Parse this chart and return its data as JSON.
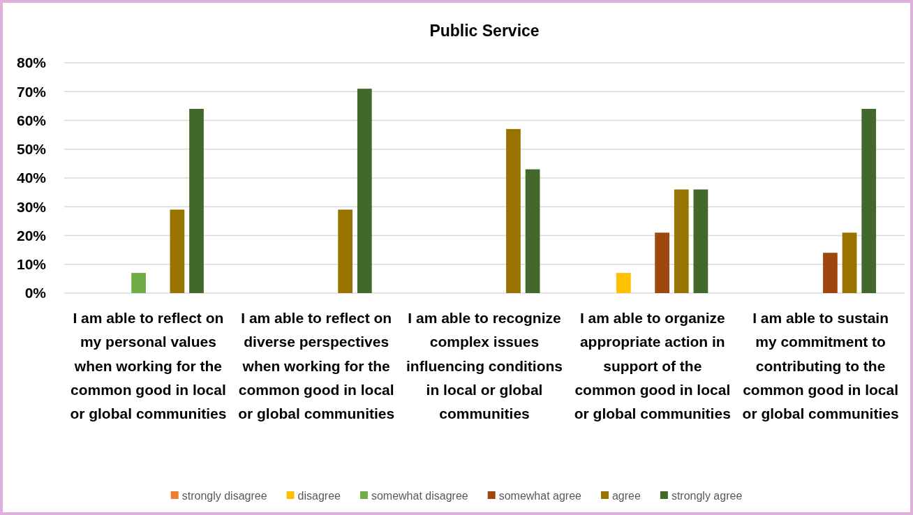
{
  "chart_data": {
    "type": "bar",
    "title": "Public Service",
    "categories": [
      "I am able to reflect on my personal values when working for the common good in local or global communities",
      "I am able to reflect on diverse perspectives when working for the common good in local or global communities",
      "I am able to recognize complex issues influencing conditions in local or global communities",
      "I am able to organize appropriate action in support of the common good in local or global communities",
      "I am able to sustain my commitment to contributing to the common good in local or global communities"
    ],
    "series": [
      {
        "name": "strongly disagree",
        "color": "#ed7d31",
        "values": [
          0,
          0,
          0,
          0,
          0
        ]
      },
      {
        "name": "disagree",
        "color": "#ffc000",
        "values": [
          0,
          0,
          0,
          7,
          0
        ]
      },
      {
        "name": "somewhat disagree",
        "color": "#70ad47",
        "values": [
          7,
          0,
          0,
          0,
          0
        ]
      },
      {
        "name": "somewhat agree",
        "color": "#9e480e",
        "values": [
          0,
          0,
          0,
          21,
          14
        ]
      },
      {
        "name": "agree",
        "color": "#997300",
        "values": [
          29,
          29,
          57,
          36,
          21
        ]
      },
      {
        "name": "strongly agree",
        "color": "#43682b",
        "values": [
          64,
          71,
          43,
          36,
          64
        ]
      }
    ],
    "ylim": [
      0,
      80
    ],
    "yticks": [
      {
        "value": 0,
        "label": "0%"
      },
      {
        "value": 10,
        "label": "10%"
      },
      {
        "value": 20,
        "label": "20%"
      },
      {
        "value": 30,
        "label": "30%"
      },
      {
        "value": 40,
        "label": "40%"
      },
      {
        "value": 50,
        "label": "50%"
      },
      {
        "value": 60,
        "label": "60%"
      },
      {
        "value": 70,
        "label": "70%"
      },
      {
        "value": 80,
        "label": "80%"
      }
    ],
    "grid": "y",
    "legend": "bottom"
  }
}
